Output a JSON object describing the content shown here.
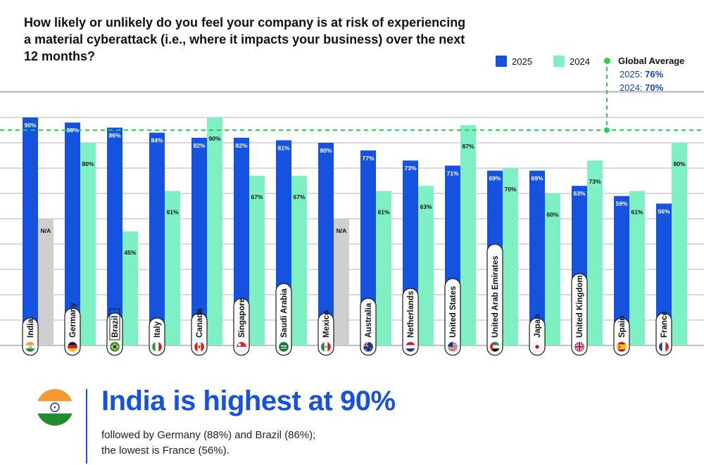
{
  "question": "How likely or unlikely do you feel your company is at risk of experiencing a material cyberattack (i.e., where it impacts your business) over the next 12 months?",
  "legend": {
    "series_2025": "2025",
    "series_2024": "2024",
    "global_title": "Global Average",
    "global_2025_label": "2025:",
    "global_2025_value": "76%",
    "global_2024_label": "2024:",
    "global_2024_value": "70%"
  },
  "colors": {
    "series_2025": "#1552e0",
    "series_2024": "#7ff0c4",
    "na": "#cfcfcf",
    "global_line": "#2ecc55",
    "gridline": "#9a9a9a",
    "headline": "#1552e0"
  },
  "chart_data": {
    "type": "bar",
    "categories": [
      "India",
      "Germany",
      "Brazil",
      "Italy",
      "Canada",
      "Singapore",
      "Saudi Arabia",
      "Mexico",
      "Australia",
      "Netherlands",
      "United States",
      "United Arab Emirates",
      "Japan",
      "United Kingdom",
      "Spain",
      "France"
    ],
    "flags": [
      "india-flag",
      "germany-flag",
      "brazil-flag",
      "italy-flag",
      "canada-flag",
      "singapore-flag",
      "saudi-arabia-flag",
      "mexico-flag",
      "australia-flag",
      "netherlands-flag",
      "united-states-flag",
      "uae-flag",
      "japan-flag",
      "united-kingdom-flag",
      "spain-flag",
      "france-flag"
    ],
    "series": [
      {
        "name": "2025",
        "values": [
          90,
          88,
          86,
          84,
          82,
          82,
          81,
          80,
          77,
          73,
          71,
          69,
          69,
          63,
          59,
          56
        ]
      },
      {
        "name": "2024",
        "values": [
          null,
          80,
          45,
          61,
          90,
          67,
          67,
          null,
          61,
          63,
          87,
          70,
          60,
          73,
          61,
          80
        ]
      }
    ],
    "data_labels_2025": [
      "90%",
      "88%",
      "86%",
      "84%",
      "82%",
      "82%",
      "81%",
      "80%",
      "77%",
      "73%",
      "71%",
      "69%",
      "69%",
      "63%",
      "59%",
      "56%"
    ],
    "data_labels_2024": [
      "N/A",
      "80%",
      "45%",
      "61%",
      "90%",
      "67%",
      "67%",
      "N/A",
      "61%",
      "63%",
      "87%",
      "70%",
      "60%",
      "73%",
      "61%",
      "80%"
    ],
    "global_average": {
      "2025": 76,
      "2024": 70
    },
    "grid": true,
    "legend_position": "top-right"
  },
  "callout": {
    "headline": "India is highest at 90%",
    "sub_line1": "followed by Germany (88%) and Brazil (86%);",
    "sub_line2": "the lowest is France (56%)."
  }
}
